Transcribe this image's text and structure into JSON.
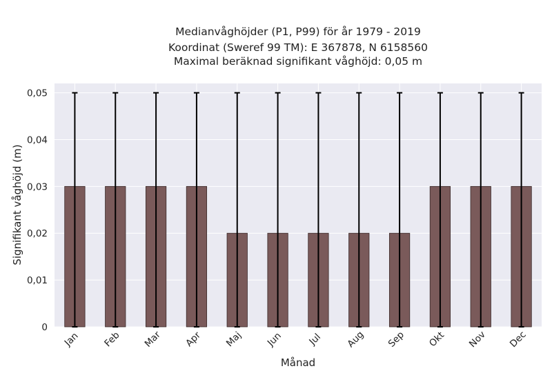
{
  "chart_data": {
    "type": "bar",
    "title_lines": [
      "Medianvåghöjder (P1, P99) för år 1979 - 2019",
      "Koordinat (Sweref 99 TM): E 367878, N 6158560",
      "Maximal beräknad signifikant våghöjd: 0,05 m"
    ],
    "xlabel": "Månad",
    "ylabel": "Signifikant våghöjd (m)",
    "categories": [
      "Jan",
      "Feb",
      "Mar",
      "Apr",
      "Maj",
      "Jun",
      "Jul",
      "Aug",
      "Sep",
      "Okt",
      "Nov",
      "Dec"
    ],
    "values": [
      0.03,
      0.03,
      0.03,
      0.03,
      0.02,
      0.02,
      0.02,
      0.02,
      0.02,
      0.03,
      0.03,
      0.03
    ],
    "error_low": [
      0,
      0,
      0,
      0,
      0,
      0,
      0,
      0,
      0,
      0,
      0,
      0
    ],
    "error_high": [
      0.05,
      0.05,
      0.05,
      0.05,
      0.05,
      0.05,
      0.05,
      0.05,
      0.05,
      0.05,
      0.05,
      0.05
    ],
    "ylim": [
      0,
      0.052
    ],
    "yticks": [
      0,
      0.01,
      0.02,
      0.03,
      0.04,
      0.05
    ],
    "ytick_labels": [
      "0",
      "0,01",
      "0,02",
      "0,03",
      "0,04",
      "0,05"
    ],
    "grid": true,
    "colors": {
      "bar": "#7a5a5a",
      "bar_edge": "#3a2a2a",
      "plot_background": "#eaeaf2",
      "grid": "#ffffff",
      "error_bar": "#000000"
    }
  }
}
